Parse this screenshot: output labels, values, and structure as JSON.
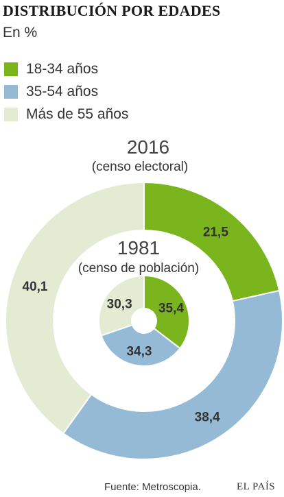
{
  "title": "DISTRIBUCIÓN POR EDADES",
  "subtitle": "En %",
  "legend": [
    {
      "label": "18-34 años",
      "color": "#7ab51d"
    },
    {
      "label": "35-54 años",
      "color": "#95bad6"
    },
    {
      "label": "Más de 55 años",
      "color": "#e3ebd3"
    }
  ],
  "chart_data": {
    "type": "donut",
    "rings": [
      {
        "name": "2016",
        "note": "(censo electoral)",
        "values": [
          21.5,
          38.4,
          40.1
        ],
        "labels": [
          "21,5",
          "38,4",
          "40,1"
        ]
      },
      {
        "name": "1981",
        "note": "(censo de población)",
        "values": [
          35.4,
          34.3,
          30.3
        ],
        "labels": [
          "35,4",
          "34,3",
          "30,3"
        ]
      }
    ],
    "categories": [
      "18-34 años",
      "35-54 años",
      "Más de 55 años"
    ]
  },
  "footer": {
    "source": "Fuente: Metroscopia.",
    "brand": "EL PAÍS"
  }
}
